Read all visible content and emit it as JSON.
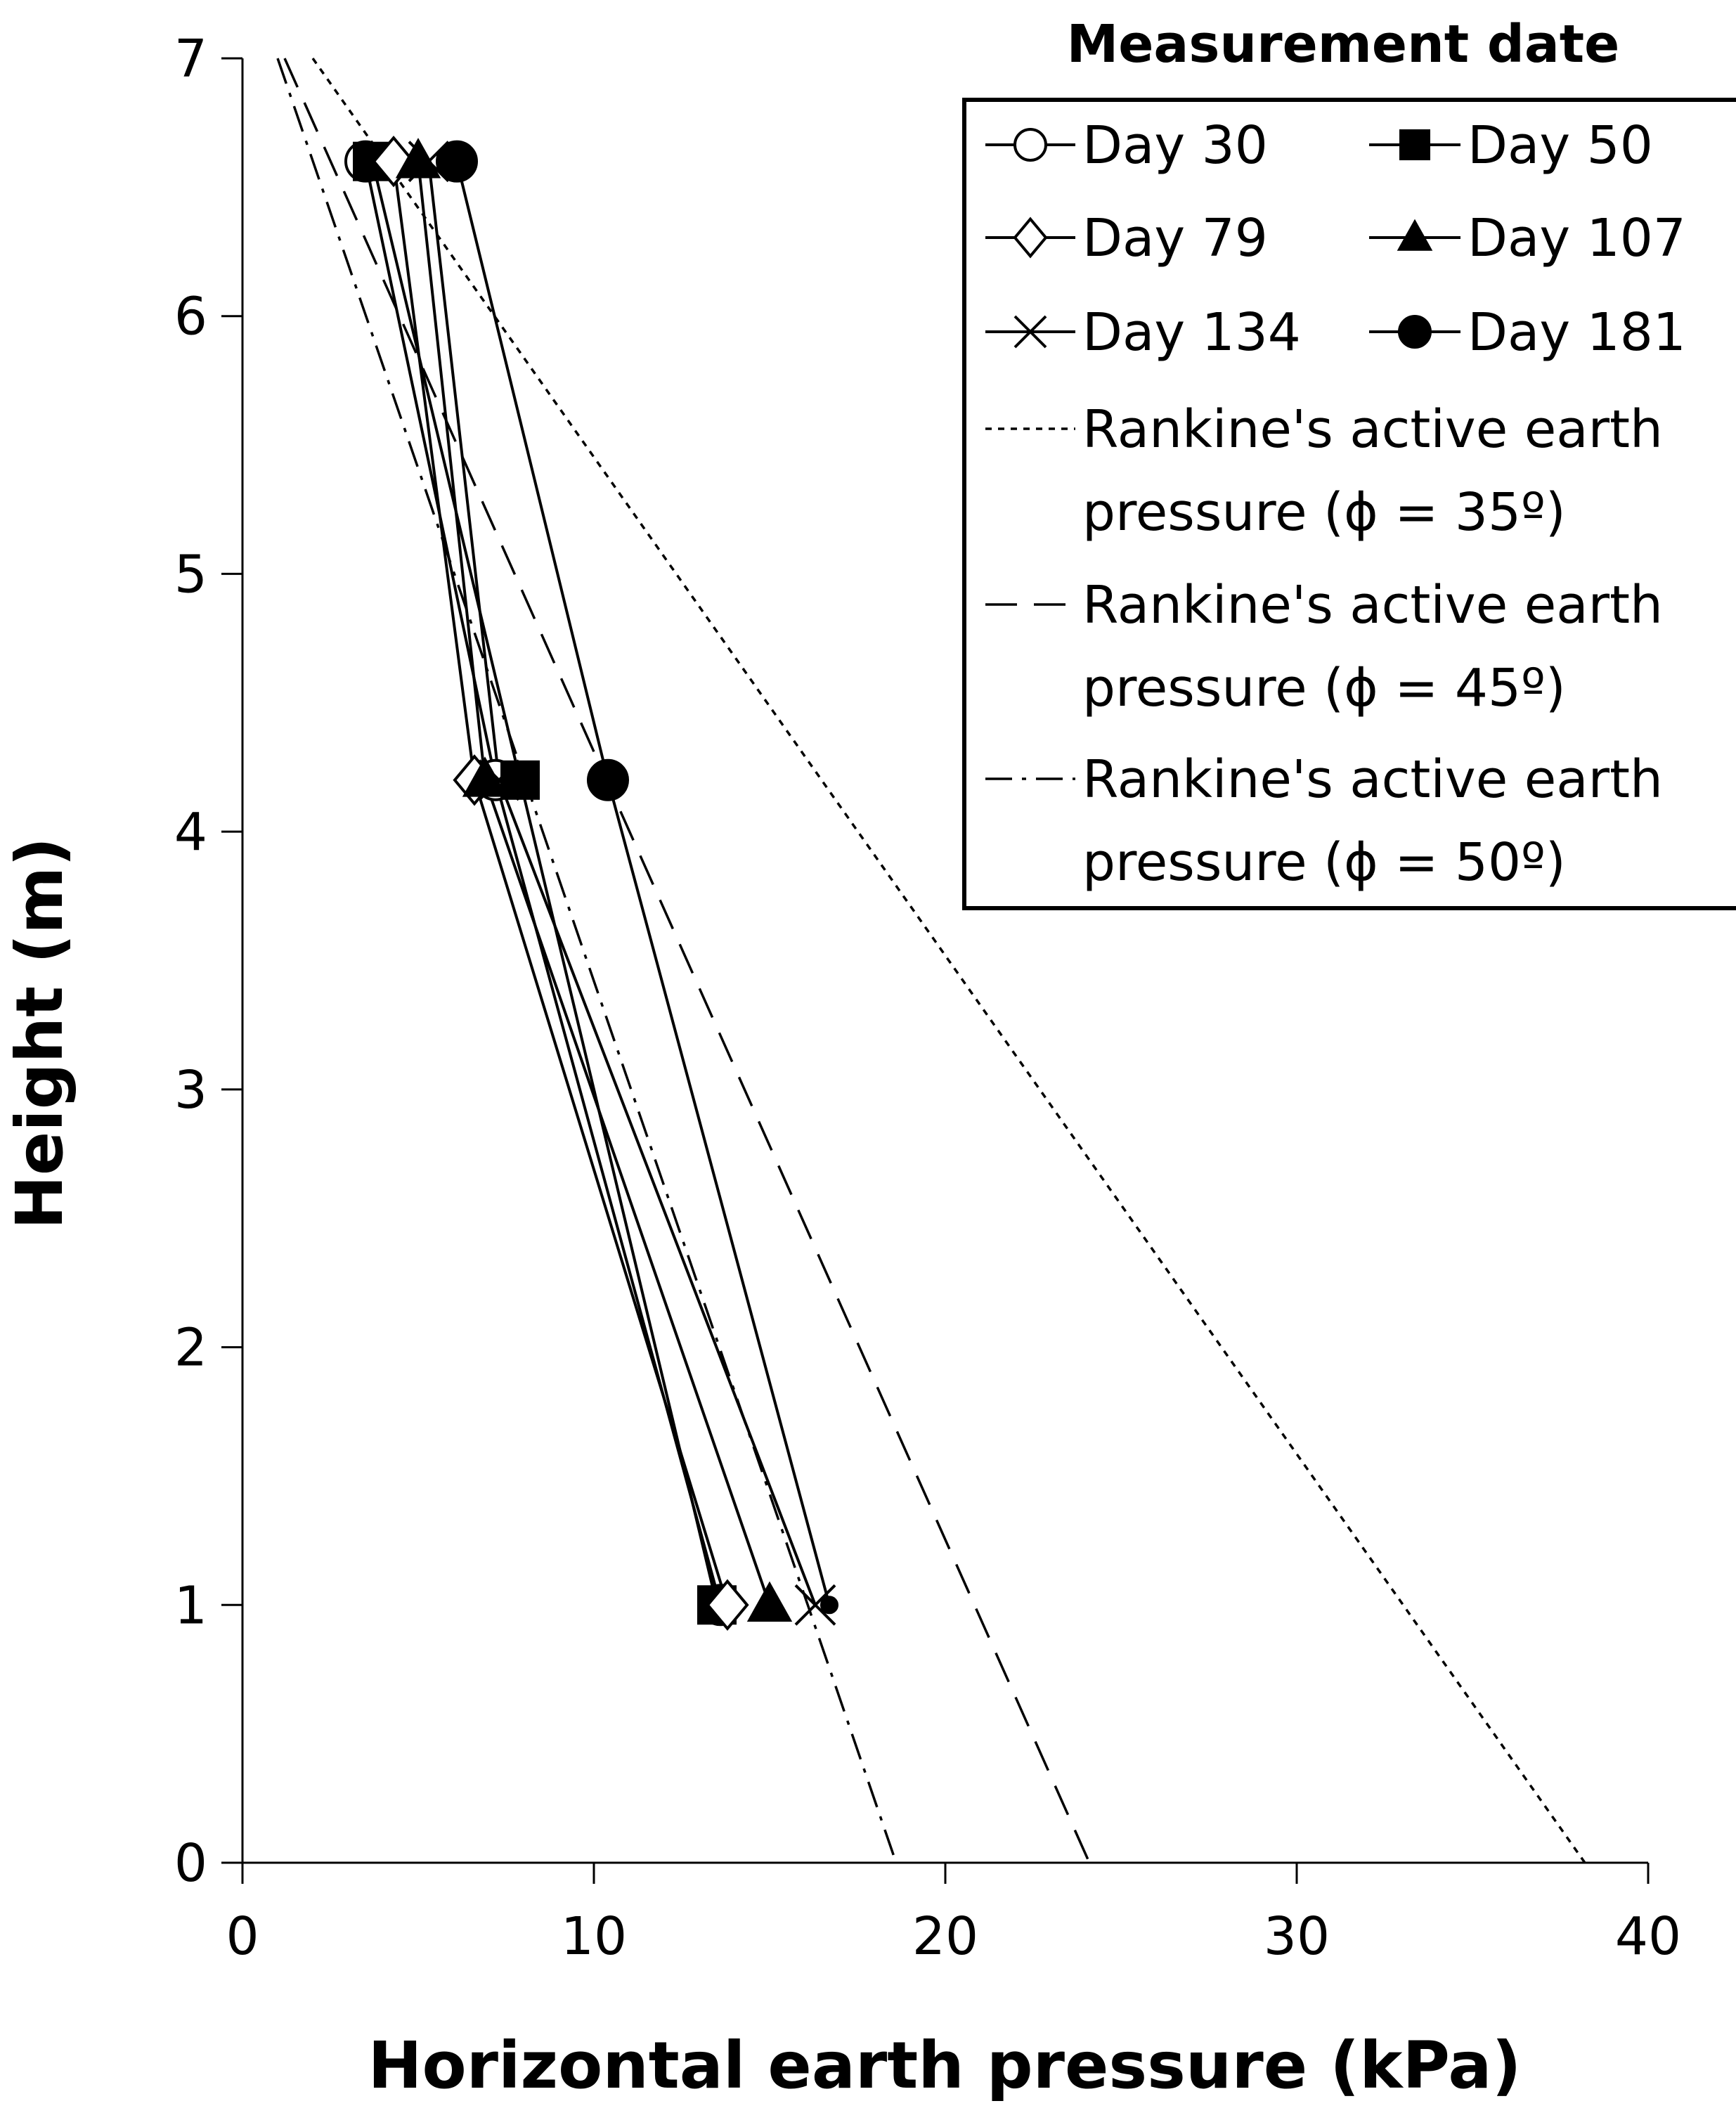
{
  "chart_data": {
    "type": "line",
    "title": "",
    "xlabel": "Horizontal earth pressure (kPa)",
    "ylabel": "Height (m)",
    "xlim": [
      0,
      40
    ],
    "ylim": [
      0,
      7
    ],
    "xticks": [
      0,
      10,
      20,
      30,
      40
    ],
    "yticks": [
      0,
      1,
      2,
      3,
      4,
      5,
      6,
      7
    ],
    "xtick_labels": [
      "0",
      "10",
      "20",
      "30",
      "40"
    ],
    "ytick_labels": [
      "0",
      "1",
      "2",
      "3",
      "4",
      "5",
      "6",
      "7"
    ],
    "grid": false,
    "legend_title": "Measurement date",
    "legend_position": "top-right",
    "series": [
      {
        "name": "Day 30",
        "marker": "circle-open",
        "line": "solid",
        "x": [
          3.5,
          7.2,
          13.6
        ],
        "y": [
          6.6,
          4.2,
          1.0
        ]
      },
      {
        "name": "Day 50",
        "marker": "square-filled",
        "line": "solid",
        "x": [
          3.7,
          7.9,
          13.5
        ],
        "y": [
          6.6,
          4.2,
          1.0
        ]
      },
      {
        "name": "Day 79",
        "marker": "diamond-open",
        "line": "solid",
        "x": [
          4.3,
          6.6,
          13.8
        ],
        "y": [
          6.6,
          4.2,
          1.0
        ]
      },
      {
        "name": "Day 107",
        "marker": "triangle-filled",
        "line": "solid",
        "x": [
          5.0,
          6.9,
          15.0
        ],
        "y": [
          6.6,
          4.2,
          1.0
        ]
      },
      {
        "name": "Day 134",
        "marker": "x",
        "line": "solid",
        "x": [
          5.3,
          7.3,
          16.3
        ],
        "y": [
          6.6,
          4.2,
          1.0
        ]
      },
      {
        "name": "Day 181",
        "marker": "circle-filled",
        "line": "solid",
        "x": [
          6.1,
          10.4,
          16.7
        ],
        "y": [
          6.6,
          4.2,
          1.0
        ]
      },
      {
        "name": "Rankine's active earth pressure (ϕ = 35º)",
        "legend_lines": [
          "Rankine's active earth",
          "pressure (ϕ = 35º)"
        ],
        "marker": "none",
        "line": "dotted",
        "x": [
          2.0,
          38.2
        ],
        "y": [
          7.0,
          0.0
        ]
      },
      {
        "name": "Rankine's active earth pressure (ϕ = 45º)",
        "legend_lines": [
          "Rankine's active earth",
          "pressure (ϕ = 45º)"
        ],
        "marker": "none",
        "line": "dashed",
        "x": [
          1.2,
          24.1
        ],
        "y": [
          7.0,
          0.0
        ]
      },
      {
        "name": "Rankine's active earth pressure (ϕ = 50º)",
        "legend_lines": [
          "Rankine's active earth",
          "pressure (ϕ = 50º)"
        ],
        "marker": "none",
        "line": "dash-dot",
        "x": [
          1.0,
          18.6
        ],
        "y": [
          7.0,
          0.0
        ]
      }
    ]
  }
}
